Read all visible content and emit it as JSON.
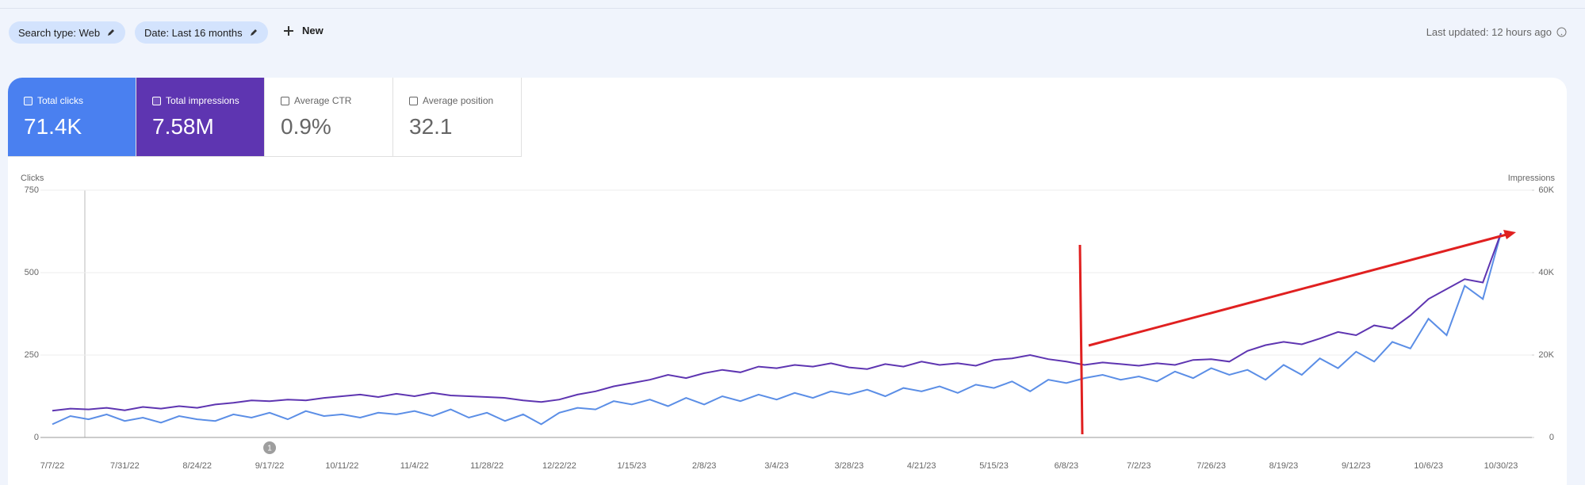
{
  "header": {
    "filters": [
      "Search type: Web",
      "Date: Last 16 months"
    ],
    "new_button": "New",
    "last_updated": "Last updated: 12 hours ago"
  },
  "metrics": [
    {
      "label": "Total clicks",
      "value": "71.4K"
    },
    {
      "label": "Total impressions",
      "value": "7.58M"
    },
    {
      "label": "Average CTR",
      "value": "0.9%"
    },
    {
      "label": "Average position",
      "value": "32.1"
    }
  ],
  "chart_data": {
    "type": "line",
    "y_label": "Clicks",
    "y2_label": "Impressions",
    "annotation": "1",
    "categories": [
      "7/7/22",
      null,
      null,
      null,
      "7/31/22",
      null,
      null,
      null,
      "8/24/22",
      null,
      null,
      null,
      "9/17/22",
      null,
      null,
      null,
      "10/11/22",
      null,
      null,
      null,
      "11/4/22",
      null,
      null,
      null,
      "11/28/22",
      null,
      null,
      null,
      "12/22/22",
      null,
      null,
      null,
      "1/15/23",
      null,
      null,
      null,
      "2/8/23",
      null,
      null,
      null,
      "3/4/23",
      null,
      null,
      null,
      "3/28/23",
      null,
      null,
      null,
      "4/21/23",
      null,
      null,
      null,
      "5/15/23",
      null,
      null,
      null,
      "6/8/23",
      null,
      null,
      null,
      "7/2/23",
      null,
      null,
      null,
      "7/26/23",
      null,
      null,
      null,
      "8/19/23",
      null,
      null,
      null,
      "9/12/23",
      null,
      null,
      null,
      "10/6/23",
      null,
      null,
      null,
      "10/30/23"
    ],
    "series": [
      {
        "name": "Clicks",
        "color": "#5b8ee6",
        "values": [
          40,
          65,
          55,
          70,
          50,
          60,
          45,
          65,
          55,
          50,
          70,
          60,
          75,
          55,
          80,
          65,
          70,
          60,
          75,
          70,
          80,
          65,
          85,
          60,
          75,
          50,
          70,
          40,
          75,
          90,
          85,
          110,
          100,
          115,
          95,
          120,
          100,
          125,
          110,
          130,
          115,
          135,
          120,
          140,
          130,
          145,
          125,
          150,
          140,
          155,
          135,
          160,
          150,
          170,
          140,
          175,
          165,
          180,
          190,
          175,
          185,
          170,
          200,
          180,
          210,
          190,
          205,
          175,
          220,
          190,
          240,
          210,
          260,
          230,
          290,
          270,
          360,
          310,
          460,
          420,
          620
        ]
      },
      {
        "name": "Impressions",
        "color": "#5e35b1",
        "axis": "y2",
        "values": [
          6500,
          7000,
          6800,
          7200,
          6600,
          7400,
          7000,
          7600,
          7200,
          8000,
          8400,
          9000,
          8800,
          9200,
          9000,
          9600,
          10000,
          10400,
          9800,
          10600,
          10000,
          10800,
          10200,
          10000,
          9800,
          9600,
          9000,
          8600,
          9200,
          10400,
          11200,
          12400,
          13200,
          14000,
          15200,
          14400,
          15600,
          16400,
          15800,
          17200,
          16800,
          17600,
          17200,
          18000,
          17000,
          16600,
          17800,
          17200,
          18400,
          17600,
          18000,
          17400,
          18800,
          19200,
          20000,
          19000,
          18400,
          17600,
          18200,
          17800,
          17400,
          18000,
          17600,
          18800,
          19000,
          18400,
          21000,
          22400,
          23200,
          22600,
          24000,
          25600,
          24800,
          27200,
          26400,
          29600,
          33600,
          36000,
          38400,
          37600,
          49600
        ]
      }
    ],
    "ylim": [
      0,
      750
    ],
    "yticks": [
      0,
      250,
      500,
      750
    ],
    "y2lim": [
      0,
      60000
    ],
    "y2ticks": [
      0,
      {
        "value": 20000,
        "label": "20K"
      },
      {
        "value": 40000,
        "label": "40K"
      },
      {
        "value": 60000,
        "label": "60K"
      }
    ],
    "grid": true
  }
}
